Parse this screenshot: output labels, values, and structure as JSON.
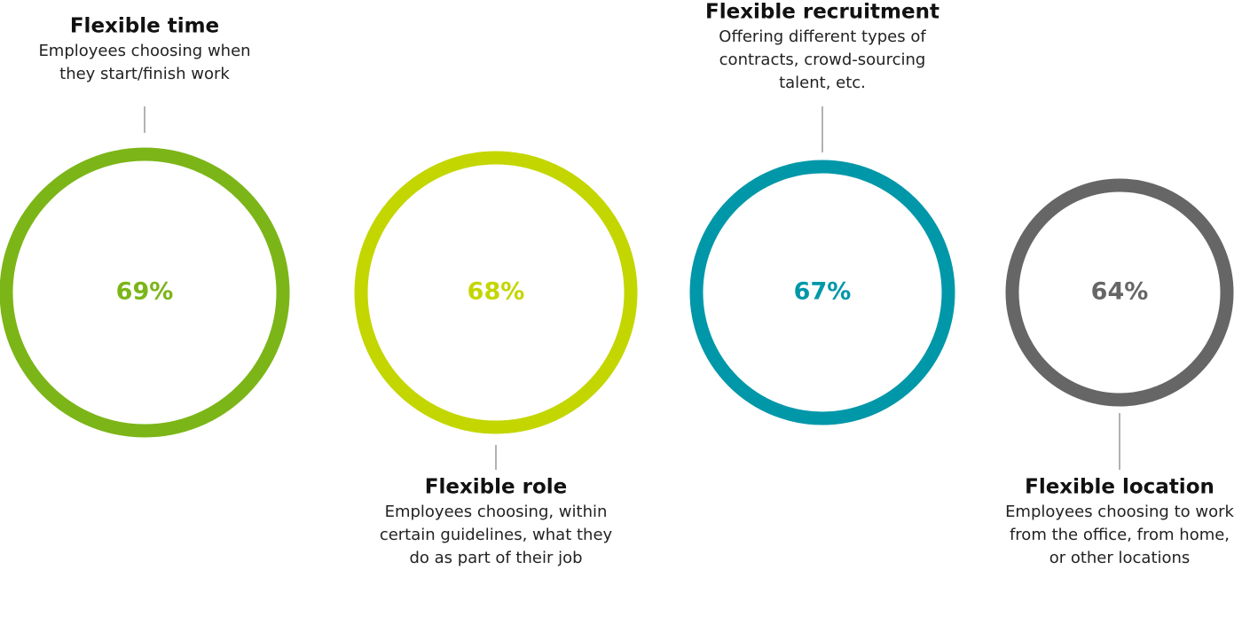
{
  "chart_data": {
    "type": "ring",
    "categories": [
      "Flexible time",
      "Flexible role",
      "Flexible recruitment",
      "Flexible location"
    ],
    "descriptions": [
      [
        "Employees choosing when",
        "they start/finish work"
      ],
      [
        "Employees choosing, within",
        "certain guidelines, what they",
        "do as part of their job"
      ],
      [
        "Offering different types of",
        "contracts, crowd-sourcing",
        "talent, etc."
      ],
      [
        "Employees choosing to work",
        "from the office, from home,",
        "or other locations"
      ]
    ],
    "values": [
      69,
      68,
      67,
      64
    ],
    "value_labels": [
      "69%",
      "68%",
      "67%",
      "64%"
    ],
    "colors": [
      "#7cb518",
      "#c4d600",
      "#0097a9",
      "#666666"
    ]
  }
}
